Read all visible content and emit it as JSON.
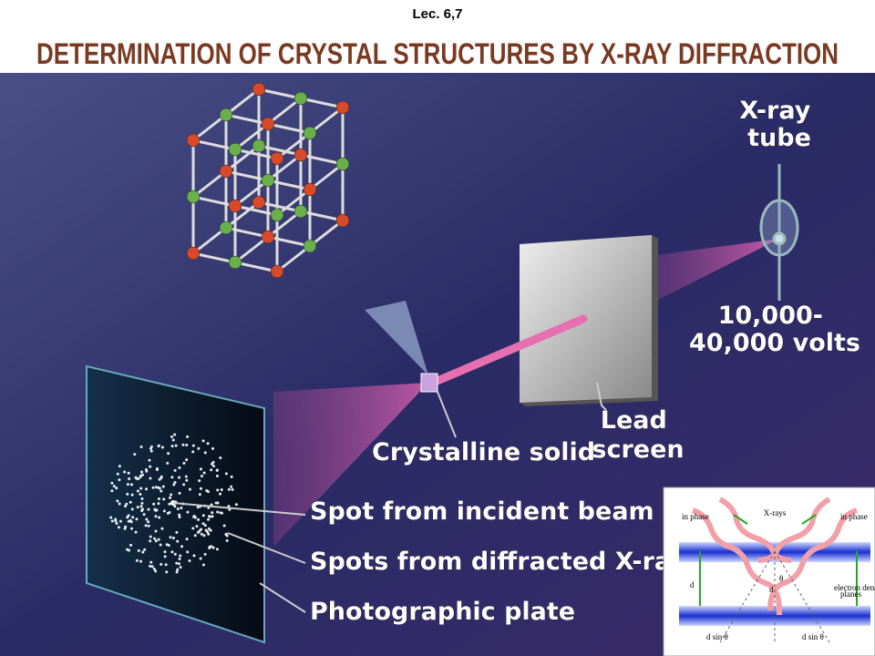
{
  "header": {
    "lecture": "Lec. 6,7",
    "title": "DETERMINATION OF CRYSTAL STRUCTURES BY X-RAY DIFFRACTION"
  },
  "figure": {
    "labels": {
      "tube": [
        "X-ray",
        "tube"
      ],
      "voltage": [
        "10,000-",
        "40,000 volts"
      ],
      "screen": [
        "Lead",
        "screen"
      ],
      "crystal": "Crystalline solid",
      "incident": "Spot from incident beam",
      "diffracted": "Spots from diffracted X-rays",
      "plate": "Photographic plate"
    }
  },
  "inset": {
    "xrays": "X-rays",
    "in_phase_left": "in phase",
    "in_phase_right": "in phase",
    "theta": "θ",
    "d_left": "d",
    "d_center": "d",
    "planes": [
      "electron density",
      "planes"
    ],
    "dsin_left": "d sin θ",
    "dsin_right": "d sin θ"
  }
}
